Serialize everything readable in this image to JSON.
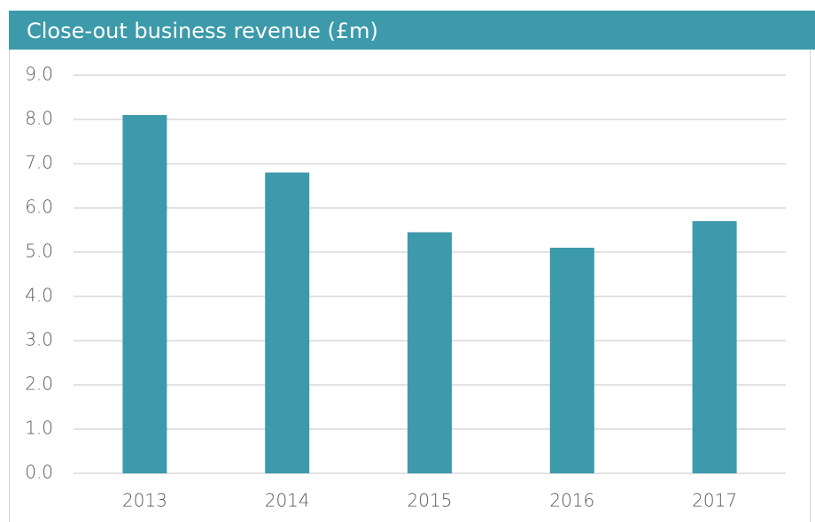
{
  "chart_data": {
    "type": "bar",
    "title": "Close-out business revenue (£m)",
    "categories": [
      "2013",
      "2014",
      "2015",
      "2016",
      "2017"
    ],
    "values": [
      8.1,
      6.8,
      5.45,
      5.1,
      5.7
    ],
    "color": "#3d9aab",
    "ylim": [
      0,
      9
    ],
    "yticks": [
      {
        "value": 0,
        "label": "0.0"
      },
      {
        "value": 1,
        "label": "1.0"
      },
      {
        "value": 2,
        "label": "2.0"
      },
      {
        "value": 3,
        "label": "3.0"
      },
      {
        "value": 4,
        "label": "4.0"
      },
      {
        "value": 5,
        "label": "5.0"
      },
      {
        "value": 6,
        "label": "6.0"
      },
      {
        "value": 7,
        "label": "7.0"
      },
      {
        "value": 8,
        "label": "8.0"
      },
      {
        "value": 9,
        "label": "9.0"
      }
    ],
    "grid": true
  }
}
